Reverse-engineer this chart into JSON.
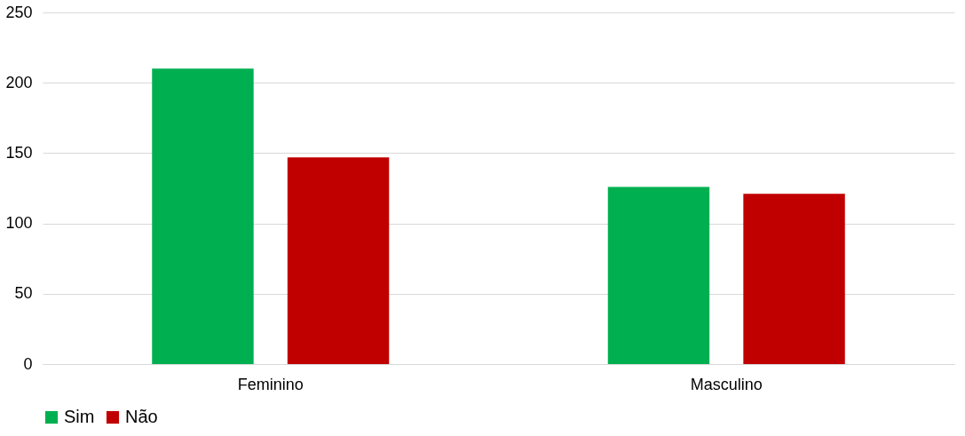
{
  "chart_data": {
    "type": "bar",
    "categories": [
      "Feminino",
      "Masculino"
    ],
    "series": [
      {
        "name": "Sim",
        "color": "#00b050",
        "values": [
          210,
          126
        ]
      },
      {
        "name": "Não",
        "color": "#c00000",
        "values": [
          147,
          121
        ]
      }
    ],
    "ylim": [
      0,
      250
    ],
    "yticks": [
      0,
      50,
      100,
      150,
      200,
      250
    ],
    "grid": "y",
    "legend": "bottom"
  }
}
